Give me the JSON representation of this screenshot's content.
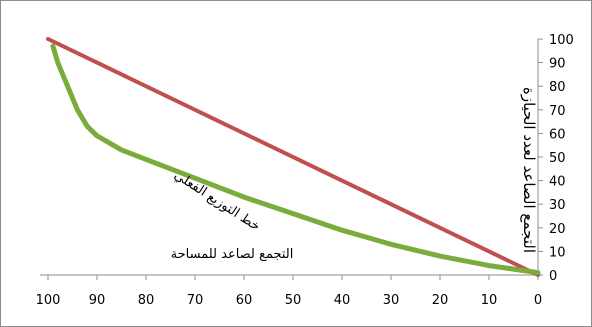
{
  "chart_data": {
    "type": "line",
    "title": "",
    "xlabel": "",
    "ylabel": "التجمع الصاعد لعدد الحيازة",
    "xlim": [
      100,
      0
    ],
    "ylim": [
      0,
      100
    ],
    "x_reversed": true,
    "y_axis_side": "right",
    "grid": false,
    "x_ticks": [
      "100",
      "90",
      "80",
      "70",
      "60",
      "50",
      "40",
      "30",
      "20",
      "10",
      "0"
    ],
    "y_ticks": [
      "0",
      "10",
      "20",
      "30",
      "40",
      "50",
      "60",
      "70",
      "80",
      "90",
      "100"
    ],
    "series": [
      {
        "name": "خط التوزيع الفعلي",
        "color": "#7aac3c",
        "x": [
          99,
          98,
          96,
          94,
          92,
          90,
          85,
          80,
          70,
          60,
          50,
          40,
          30,
          20,
          10,
          0
        ],
        "y": [
          97,
          90,
          80,
          70,
          63,
          59,
          53,
          49,
          41,
          33,
          26,
          19,
          13,
          8,
          4,
          1
        ]
      },
      {
        "name": "",
        "color": "#c0504d",
        "x": [
          100,
          0
        ],
        "y": [
          100,
          0
        ]
      }
    ],
    "annotations": [
      {
        "text": "خط التوزيع الفعلي"
      },
      {
        "text": "التجمع لصاعد للمساحة"
      }
    ]
  }
}
